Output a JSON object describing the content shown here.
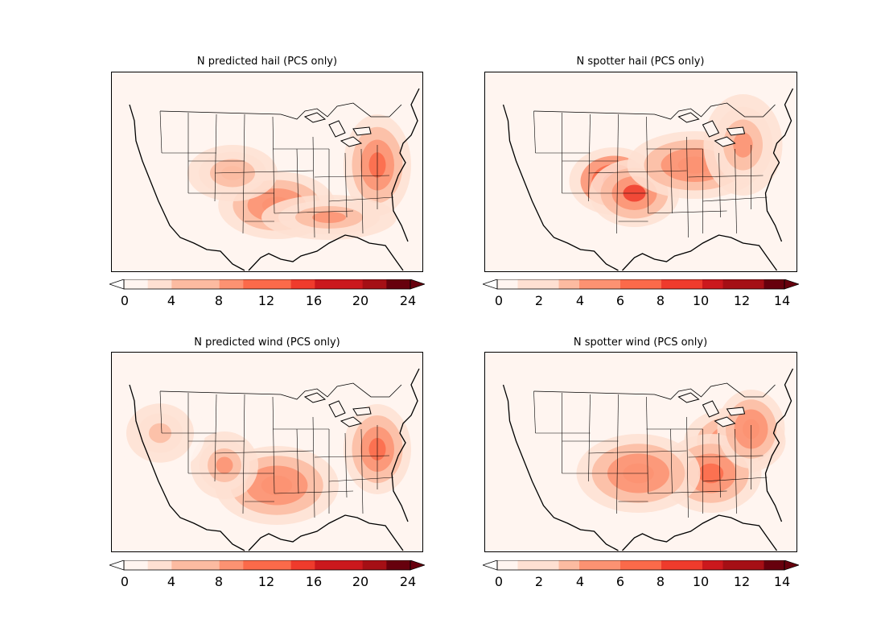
{
  "figure": {
    "panels": [
      {
        "id": "predicted-hail",
        "title": "N predicted hail (PCS only)",
        "colorbar": {
          "ticks": [
            "0",
            "4",
            "8",
            "12",
            "16",
            "20",
            "24"
          ],
          "levels": [
            0,
            2,
            4,
            6,
            8,
            10,
            12,
            14,
            16,
            18,
            20,
            22,
            24
          ],
          "extend": "both"
        },
        "hotspots": [
          {
            "region": "Oklahoma",
            "value": 10
          },
          {
            "region": "Virginia / North Carolina coast",
            "value": 12
          },
          {
            "region": "Colorado / Kansas",
            "value": 6
          },
          {
            "region": "Gulf Coast",
            "value": 8
          }
        ]
      },
      {
        "id": "spotter-hail",
        "title": "N spotter hail (PCS only)",
        "colorbar": {
          "ticks": [
            "0",
            "2",
            "4",
            "6",
            "8",
            "10",
            "12",
            "14"
          ],
          "levels": [
            0,
            1,
            2,
            3,
            4,
            5,
            6,
            7,
            8,
            9,
            10,
            11,
            12,
            13,
            14
          ],
          "extend": "both"
        },
        "hotspots": [
          {
            "region": "Oklahoma",
            "value": 9
          },
          {
            "region": "Eastern Colorado / Kansas",
            "value": 8
          },
          {
            "region": "Ohio Valley",
            "value": 6
          },
          {
            "region": "Mid-Atlantic",
            "value": 5
          }
        ]
      },
      {
        "id": "predicted-wind",
        "title": "N predicted wind (PCS only)",
        "colorbar": {
          "ticks": [
            "0",
            "4",
            "8",
            "12",
            "16",
            "20",
            "24"
          ],
          "levels": [
            0,
            2,
            4,
            6,
            8,
            10,
            12,
            14,
            16,
            18,
            20,
            22,
            24
          ],
          "extend": "both"
        },
        "hotspots": [
          {
            "region": "Virginia / North Carolina coast",
            "value": 12
          },
          {
            "region": "Oklahoma / Texas",
            "value": 10
          },
          {
            "region": "Colorado",
            "value": 8
          },
          {
            "region": "Northwest",
            "value": 5
          }
        ]
      },
      {
        "id": "spotter-wind",
        "title": "N spotter wind (PCS only)",
        "colorbar": {
          "ticks": [
            "0",
            "2",
            "4",
            "6",
            "8",
            "10",
            "12",
            "14"
          ],
          "levels": [
            0,
            1,
            2,
            3,
            4,
            5,
            6,
            7,
            8,
            9,
            10,
            11,
            12,
            13,
            14
          ],
          "extend": "both"
        },
        "hotspots": [
          {
            "region": "Virginia / Carolinas",
            "value": 8
          },
          {
            "region": "Tennessee / Georgia",
            "value": 7
          },
          {
            "region": "Oklahoma / Kansas",
            "value": 6
          },
          {
            "region": "Mid-Atlantic",
            "value": 6
          }
        ]
      }
    ],
    "colors": {
      "background": "#fff5f0",
      "scale": [
        "#fff5f0",
        "#fee0d2",
        "#fcbba1",
        "#fc9272",
        "#fb6a4a",
        "#ef3b2c",
        "#cb181d",
        "#a50f15",
        "#67000d"
      ]
    }
  }
}
